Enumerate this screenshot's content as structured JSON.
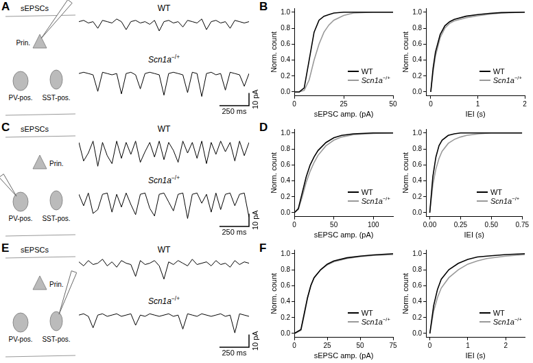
{
  "panel_labels": [
    "A",
    "B",
    "C",
    "D",
    "E",
    "F"
  ],
  "schematics": [
    {
      "title": "sEPSCs",
      "cells": [
        "Prin.",
        "PV-pos.",
        "SST-pos."
      ],
      "recorded": "Prin."
    },
    {
      "title": "sEPSCs",
      "cells": [
        "Prin.",
        "PV-pos.",
        "SST-pos."
      ],
      "recorded": "PV-pos."
    },
    {
      "title": "sEPSCs",
      "cells": [
        "Prin.",
        "PV-pos.",
        "SST-pos."
      ],
      "recorded": "SST-pos."
    }
  ],
  "chart_data": [
    {
      "type": "line",
      "title": "WT",
      "color": "#000000",
      "xlim": [
        0,
        1440
      ],
      "ylim": [
        -22,
        6
      ],
      "tick_labels": false,
      "grid": false,
      "x": [
        0,
        40,
        80,
        120,
        160,
        200,
        240,
        280,
        320,
        360,
        400,
        440,
        480,
        520,
        560,
        600,
        640,
        680,
        720,
        760,
        800,
        840,
        880,
        920,
        960,
        1000,
        1040,
        1080,
        1120,
        1160,
        1200,
        1240,
        1280,
        1320,
        1360,
        1400,
        1440
      ],
      "values": [
        0,
        1,
        -1,
        0,
        -5,
        1,
        0,
        -1,
        2,
        0,
        -6,
        0,
        1,
        -1,
        0,
        -2,
        1,
        -7,
        0,
        1,
        -1,
        0,
        -4,
        1,
        0,
        -1,
        2,
        -6,
        0,
        1,
        -1,
        0,
        -5,
        1,
        0,
        -1,
        0
      ]
    },
    {
      "type": "line",
      "title": "Scn1a−/+",
      "color": "#000000",
      "xlim": [
        0,
        1440
      ],
      "ylim": [
        -22,
        6
      ],
      "tick_labels": false,
      "grid": false,
      "x": [
        0,
        40,
        80,
        120,
        160,
        200,
        240,
        280,
        320,
        360,
        400,
        440,
        480,
        520,
        560,
        600,
        640,
        680,
        720,
        760,
        800,
        840,
        880,
        920,
        960,
        1000,
        1040,
        1080,
        1120,
        1160,
        1200,
        1240,
        1280,
        1320,
        1360,
        1400,
        1440
      ],
      "values": [
        0,
        1,
        0,
        -1,
        -14,
        1,
        0,
        -1,
        0,
        -16,
        0,
        1,
        -1,
        -12,
        0,
        1,
        0,
        -1,
        -17,
        0,
        1,
        0,
        -1,
        -15,
        1,
        0,
        -18,
        0,
        1,
        -1,
        0,
        -13,
        1,
        0,
        -1,
        -10,
        0
      ],
      "scale_bar": {
        "x": 250,
        "y": 10,
        "x_label": "250 ms",
        "y_label": "10 pA"
      }
    },
    {
      "type": "line",
      "title": "WT",
      "color": "#000000",
      "xlim": [
        0,
        1440
      ],
      "ylim": [
        -22,
        6
      ],
      "tick_labels": false,
      "grid": false,
      "x": [
        0,
        40,
        80,
        120,
        160,
        200,
        240,
        280,
        320,
        360,
        400,
        440,
        480,
        520,
        560,
        600,
        640,
        680,
        720,
        760,
        800,
        840,
        880,
        920,
        960,
        1000,
        1040,
        1080,
        1120,
        1160,
        1200,
        1240,
        1280,
        1320,
        1360,
        1400,
        1440
      ],
      "values": [
        0,
        -14,
        -8,
        1,
        -18,
        0,
        -10,
        -16,
        1,
        -12,
        0,
        -9,
        1,
        -15,
        -7,
        0,
        -11,
        1,
        -13,
        0,
        -6,
        -15,
        1,
        -8,
        0,
        -12,
        1,
        -16,
        0,
        -9,
        1,
        -7,
        0,
        -14,
        1,
        -10,
        0
      ]
    },
    {
      "type": "line",
      "title": "Scn1a−/+",
      "color": "#000000",
      "xlim": [
        0,
        1440
      ],
      "ylim": [
        -22,
        6
      ],
      "tick_labels": false,
      "grid": false,
      "x": [
        0,
        40,
        80,
        120,
        160,
        200,
        240,
        280,
        320,
        360,
        400,
        440,
        480,
        520,
        560,
        600,
        640,
        680,
        720,
        760,
        800,
        840,
        880,
        920,
        960,
        1000,
        1040,
        1080,
        1120,
        1160,
        1200,
        1240,
        1280,
        1320,
        1360,
        1400,
        1440
      ],
      "values": [
        0,
        -9,
        1,
        -15,
        -12,
        0,
        1,
        -14,
        0,
        -10,
        1,
        -8,
        -16,
        0,
        1,
        -11,
        -17,
        0,
        1,
        -6,
        -13,
        0,
        1,
        -19,
        0,
        1,
        -7,
        0,
        -14,
        1,
        -12,
        0,
        1,
        -9,
        0,
        1,
        -18
      ],
      "scale_bar": {
        "x": 250,
        "y": 10,
        "x_label": "250 ms",
        "y_label": "10 pA"
      }
    },
    {
      "type": "line",
      "title": "WT",
      "color": "#000000",
      "xlim": [
        0,
        1440
      ],
      "ylim": [
        -22,
        6
      ],
      "tick_labels": false,
      "grid": false,
      "x": [
        0,
        40,
        80,
        120,
        160,
        200,
        240,
        280,
        320,
        360,
        400,
        440,
        480,
        520,
        560,
        600,
        640,
        680,
        720,
        760,
        800,
        840,
        880,
        920,
        960,
        1000,
        1040,
        1080,
        1120,
        1160,
        1200,
        1240,
        1280,
        1320,
        1360,
        1400,
        1440
      ],
      "values": [
        1,
        -2,
        2,
        -1,
        0,
        3,
        -2,
        1,
        -3,
        2,
        0,
        -1,
        -10,
        2,
        -1,
        0,
        2,
        -2,
        -12,
        1,
        -1,
        2,
        0,
        -2,
        3,
        -1,
        0,
        1,
        -2,
        2,
        -1,
        0,
        -3,
        2,
        -1,
        1,
        0
      ]
    },
    {
      "type": "line",
      "title": "Scn1a−/+",
      "color": "#000000",
      "xlim": [
        0,
        1440
      ],
      "ylim": [
        -22,
        6
      ],
      "tick_labels": false,
      "grid": false,
      "x": [
        0,
        40,
        80,
        120,
        160,
        200,
        240,
        280,
        320,
        360,
        400,
        440,
        480,
        520,
        560,
        600,
        640,
        680,
        720,
        760,
        800,
        840,
        880,
        920,
        960,
        1000,
        1040,
        1080,
        1120,
        1160,
        1200,
        1240,
        1280,
        1320,
        1360,
        1400,
        1440
      ],
      "values": [
        0,
        1,
        -1,
        -10,
        0,
        1,
        -1,
        0,
        1,
        -1,
        0,
        1,
        -8,
        0,
        -1,
        1,
        0,
        -1,
        0,
        1,
        -1,
        0,
        -11,
        1,
        0,
        -1,
        1,
        0,
        -1,
        0,
        1,
        -1,
        0,
        -14,
        1,
        0,
        -1
      ],
      "scale_bar": {
        "x": 250,
        "y": 10,
        "x_label": "250 ms",
        "y_label": "10 pA"
      }
    },
    {
      "type": "line",
      "xlabel": "sEPSC amp. (pA)",
      "ylabel": "Norm. count",
      "xlim": [
        0,
        50
      ],
      "ylim": [
        -0.05,
        1.05
      ],
      "xticks": [
        0,
        25,
        50
      ],
      "yticks": [
        {
          "value": 0,
          "label": "0.0"
        },
        0.2,
        0.4,
        0.6,
        0.8,
        {
          "value": 1,
          "label": "1.0"
        }
      ],
      "grid": false,
      "legend": "lower right",
      "x": [
        0,
        2.5,
        5,
        7.5,
        10,
        12.5,
        15,
        17.5,
        20,
        25,
        30,
        40,
        50
      ],
      "series": [
        {
          "name": "WT",
          "color": "#000000",
          "values": [
            0,
            0,
            0.05,
            0.4,
            0.75,
            0.9,
            0.95,
            0.97,
            0.99,
            1,
            1,
            1,
            1
          ]
        },
        {
          "name": "Scn1a−/+",
          "color": "#999999",
          "values": [
            0,
            0,
            0.02,
            0.15,
            0.4,
            0.6,
            0.75,
            0.84,
            0.9,
            0.96,
            0.99,
            1,
            1
          ]
        }
      ]
    },
    {
      "type": "line",
      "xlabel": "IEI (s)",
      "ylabel": "Norm. count",
      "xlim": [
        -0.1,
        2
      ],
      "ylim": [
        -0.05,
        1.05
      ],
      "xticks": [
        0,
        1,
        2
      ],
      "yticks": [
        {
          "value": 0,
          "label": "0.0"
        },
        0.2,
        0.4,
        0.6,
        0.8,
        {
          "value": 1,
          "label": "1.0"
        }
      ],
      "grid": false,
      "legend": "lower right",
      "x": [
        0,
        0.05,
        0.1,
        0.2,
        0.3,
        0.4,
        0.5,
        0.75,
        1,
        1.25,
        1.5,
        2
      ],
      "series": [
        {
          "name": "WT",
          "color": "#000000",
          "values": [
            0,
            0.3,
            0.5,
            0.72,
            0.83,
            0.88,
            0.91,
            0.95,
            0.97,
            0.985,
            0.995,
            1
          ]
        },
        {
          "name": "Scn1a−/+",
          "color": "#999999",
          "values": [
            0,
            0.25,
            0.45,
            0.68,
            0.8,
            0.86,
            0.89,
            0.93,
            0.955,
            0.975,
            0.99,
            1
          ]
        }
      ]
    },
    {
      "type": "line",
      "xlabel": "sEPSC amp. (pA)",
      "ylabel": "Norm. count",
      "xlim": [
        0,
        125
      ],
      "ylim": [
        -0.05,
        1.05
      ],
      "xticks": [
        0,
        50,
        100
      ],
      "yticks": [
        {
          "value": 0,
          "label": "0.0"
        },
        0.2,
        0.4,
        0.6,
        0.8,
        {
          "value": 1,
          "label": "1.0"
        }
      ],
      "grid": false,
      "legend": "lower right",
      "x": [
        0,
        5,
        10,
        15,
        20,
        25,
        30,
        40,
        50,
        60,
        75,
        100,
        125
      ],
      "series": [
        {
          "name": "WT",
          "color": "#000000",
          "values": [
            0,
            0.05,
            0.25,
            0.45,
            0.6,
            0.7,
            0.78,
            0.88,
            0.94,
            0.97,
            0.99,
            1,
            1
          ]
        },
        {
          "name": "Scn1a−/+",
          "color": "#999999",
          "values": [
            0,
            0.04,
            0.2,
            0.38,
            0.52,
            0.63,
            0.72,
            0.84,
            0.91,
            0.95,
            0.98,
            0.995,
            1
          ]
        }
      ]
    },
    {
      "type": "line",
      "xlabel": "IEI (s)",
      "ylabel": "Norm. count",
      "xlim": [
        -0.03,
        0.75
      ],
      "ylim": [
        -0.05,
        1.05
      ],
      "xticks": [
        {
          "value": 0,
          "label": "0.00"
        },
        0.25,
        {
          "value": 0.5,
          "label": "0.50"
        },
        0.75
      ],
      "yticks": [
        {
          "value": 0,
          "label": "0.0"
        },
        0.2,
        0.4,
        0.6,
        0.8,
        {
          "value": 1,
          "label": "1.0"
        }
      ],
      "grid": false,
      "legend": "lower right",
      "x": [
        0,
        0.025,
        0.05,
        0.075,
        0.1,
        0.15,
        0.2,
        0.25,
        0.3,
        0.4,
        0.5,
        0.75
      ],
      "series": [
        {
          "name": "WT",
          "color": "#000000",
          "values": [
            0,
            0.45,
            0.7,
            0.84,
            0.91,
            0.97,
            0.99,
            1,
            1,
            1,
            1,
            1
          ]
        },
        {
          "name": "Scn1a−/+",
          "color": "#999999",
          "values": [
            0,
            0.35,
            0.55,
            0.68,
            0.77,
            0.87,
            0.92,
            0.95,
            0.97,
            0.99,
            1,
            1
          ]
        }
      ]
    },
    {
      "type": "line",
      "xlabel": "sEPSC amp. (pA)",
      "ylabel": "Norm. count",
      "xlim": [
        0,
        75
      ],
      "ylim": [
        -0.05,
        1.05
      ],
      "xticks": [
        0,
        25,
        50,
        75
      ],
      "yticks": [
        {
          "value": 0,
          "label": "0.0"
        },
        0.2,
        0.4,
        0.6,
        0.8,
        {
          "value": 1,
          "label": "1.0"
        }
      ],
      "grid": false,
      "legend": "lower right",
      "x": [
        0,
        5,
        7.5,
        10,
        12.5,
        15,
        20,
        25,
        30,
        40,
        50,
        60,
        75
      ],
      "series": [
        {
          "name": "WT",
          "color": "#000000",
          "values": [
            0,
            0.05,
            0.25,
            0.45,
            0.6,
            0.7,
            0.8,
            0.87,
            0.91,
            0.95,
            0.97,
            0.985,
            1
          ]
        },
        {
          "name": "Scn1a−/+",
          "color": "#999999",
          "values": [
            0,
            0.04,
            0.23,
            0.44,
            0.6,
            0.7,
            0.8,
            0.86,
            0.9,
            0.94,
            0.965,
            0.98,
            0.99
          ]
        }
      ]
    },
    {
      "type": "line",
      "xlabel": "IEI (s)",
      "ylabel": "Norm. count",
      "xlim": [
        -0.1,
        2.5
      ],
      "ylim": [
        -0.05,
        1.05
      ],
      "xticks": [
        0,
        1,
        2
      ],
      "yticks": [
        {
          "value": 0,
          "label": "0.0"
        },
        0.2,
        0.4,
        0.6,
        0.8,
        {
          "value": 1,
          "label": "1.0"
        }
      ],
      "grid": false,
      "legend": "lower right",
      "x": [
        0,
        0.1,
        0.2,
        0.3,
        0.5,
        0.75,
        1,
        1.25,
        1.5,
        2,
        2.5
      ],
      "series": [
        {
          "name": "WT",
          "color": "#000000",
          "values": [
            0,
            0.35,
            0.55,
            0.68,
            0.8,
            0.88,
            0.93,
            0.96,
            0.97,
            0.99,
            1
          ]
        },
        {
          "name": "Scn1a−/+",
          "color": "#999999",
          "values": [
            0,
            0.28,
            0.45,
            0.57,
            0.7,
            0.8,
            0.87,
            0.91,
            0.94,
            0.97,
            0.99
          ]
        }
      ]
    }
  ]
}
